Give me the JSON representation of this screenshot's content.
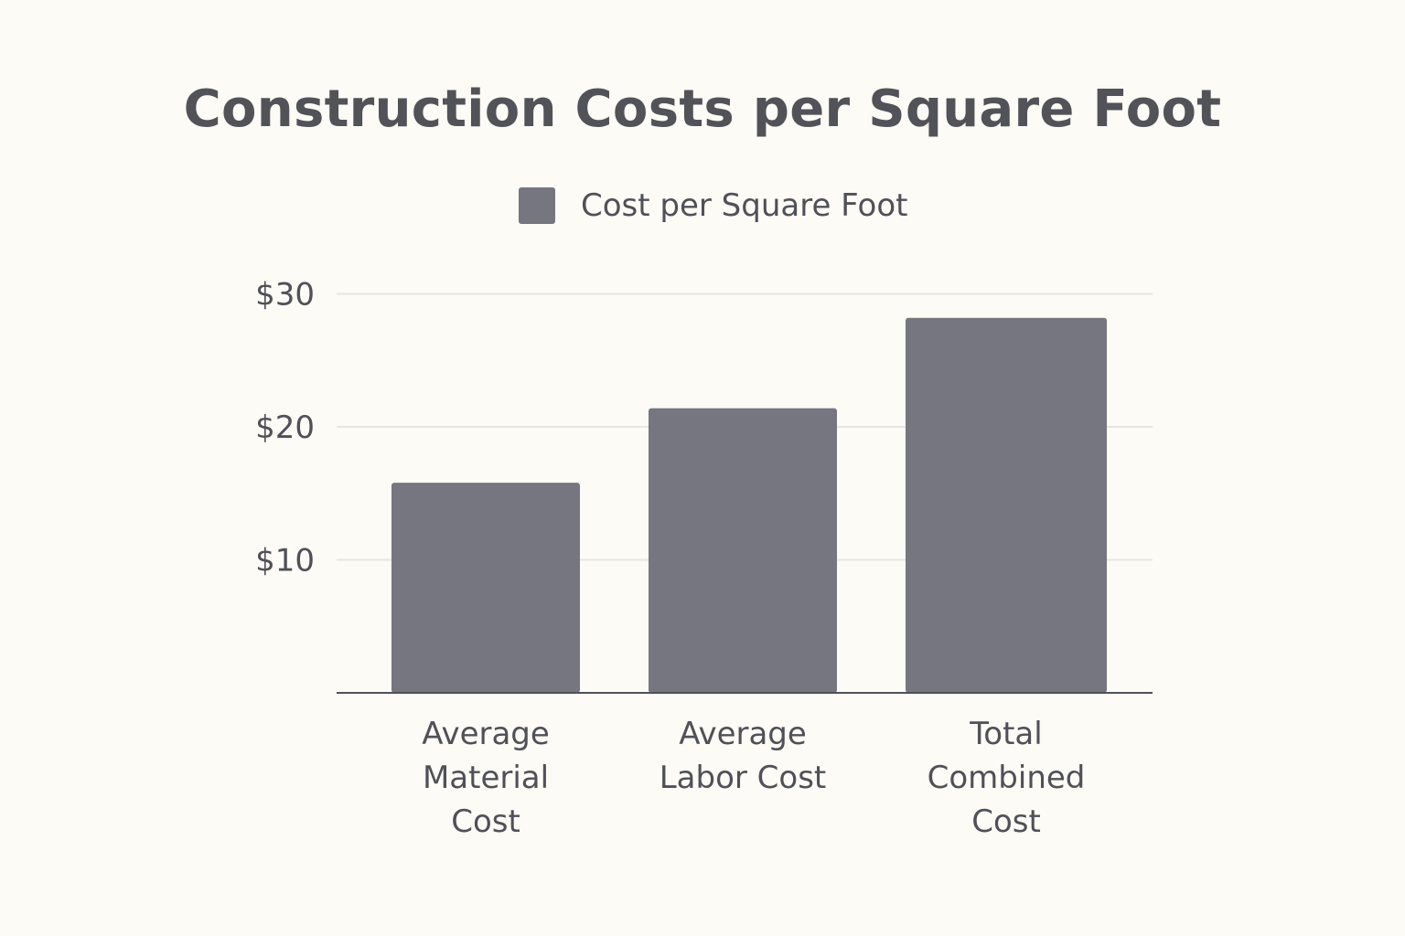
{
  "chart_data": {
    "type": "bar",
    "title": "Construction Costs per Square Foot",
    "categories": [
      [
        "Average",
        "Material",
        "Cost"
      ],
      [
        "Average",
        "Labor Cost"
      ],
      [
        "Total",
        "Combined",
        "Cost"
      ]
    ],
    "series": [
      {
        "name": "Cost per Square Foot",
        "values": [
          15.8,
          21.4,
          28.2
        ],
        "color": "#75767f"
      }
    ],
    "ylim": [
      0,
      30
    ],
    "yticks": [
      {
        "value": 10,
        "label": "$10"
      },
      {
        "value": 20,
        "label": "$20"
      },
      {
        "value": 30,
        "label": "$30"
      }
    ],
    "grid": true,
    "legend_position": "top-center",
    "colors": {
      "background": "#fcfbf5",
      "bar": "#75767f",
      "grid": "#e6e5df",
      "axis": "#505058",
      "text": "#505058"
    }
  }
}
